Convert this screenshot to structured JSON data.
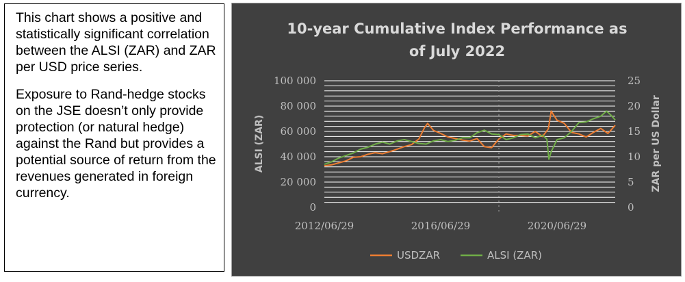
{
  "description": {
    "paragraphs": [
      "This chart shows a positive and statistically significant correlation between the ALSI (ZAR) and ZAR per USD price series.",
      "Exposure to Rand-hedge stocks on the JSE doesn’t only provide protection (or natural hedge) against the Rand but provides a potential source of return from the revenues generated in foreign currency."
    ]
  },
  "chart_data": {
    "type": "line",
    "title": "10-year Cumulative Index Performance as of July 2022",
    "title_lines": [
      "10-year Cumulative Index Performance as",
      "of July 2022"
    ],
    "ylabel": "ALSI (ZAR)",
    "y2label": "ZAR per US Dollar",
    "xlim": [
      2012.5,
      2022.5
    ],
    "ylim": [
      0,
      100000
    ],
    "y2lim": [
      0,
      25
    ],
    "y_ticks": [
      0,
      20000,
      40000,
      60000,
      80000,
      100000
    ],
    "y_tick_labels": [
      "0",
      "20 000",
      "40 000",
      "60 000",
      "80 000",
      "100 000"
    ],
    "y2_ticks": [
      0,
      5,
      10,
      15,
      20,
      25
    ],
    "y2_tick_labels": [
      "0",
      "5",
      "10",
      "15",
      "20",
      "25"
    ],
    "x_ticks": [
      2012.5,
      2016.5,
      2020.5
    ],
    "x_tick_labels": [
      "2012/06/29",
      "2016/06/29",
      "2020/06/29"
    ],
    "grid": true,
    "legend": "bottom",
    "colors": {
      "background": "#404040",
      "usdzar": "#ed7d31",
      "alsi": "#70ad47",
      "grid": "#ffffff",
      "text": "#bfbfbf"
    },
    "series": [
      {
        "name": "USDZAR",
        "axis": "y2",
        "x": [
          2012.5,
          2012.75,
          2013.0,
          2013.25,
          2013.5,
          2013.75,
          2014.0,
          2014.25,
          2014.5,
          2014.75,
          2015.0,
          2015.25,
          2015.5,
          2015.75,
          2015.95,
          2016.05,
          2016.25,
          2016.5,
          2016.75,
          2017.0,
          2017.25,
          2017.5,
          2017.75,
          2018.0,
          2018.25,
          2018.5,
          2018.75,
          2019.0,
          2019.25,
          2019.5,
          2019.75,
          2020.0,
          2020.2,
          2020.3,
          2020.5,
          2020.75,
          2021.0,
          2021.25,
          2021.5,
          2021.75,
          2022.0,
          2022.25,
          2022.5
        ],
        "values": [
          8.2,
          8.4,
          8.8,
          9.2,
          9.9,
          10.0,
          10.5,
          10.8,
          10.6,
          11.0,
          11.5,
          12.0,
          12.4,
          13.5,
          15.8,
          16.6,
          15.2,
          14.6,
          13.9,
          13.6,
          13.3,
          13.1,
          13.6,
          12.0,
          11.8,
          13.5,
          14.5,
          14.2,
          14.2,
          14.1,
          15.0,
          14.0,
          15.5,
          19.0,
          17.2,
          16.6,
          14.8,
          14.5,
          13.9,
          14.8,
          15.6,
          14.6,
          16.2
        ]
      },
      {
        "name": "ALSI (ZAR)",
        "axis": "y1",
        "x": [
          2012.5,
          2012.75,
          2013.0,
          2013.25,
          2013.5,
          2013.75,
          2014.0,
          2014.25,
          2014.5,
          2014.75,
          2015.0,
          2015.25,
          2015.5,
          2015.75,
          2016.0,
          2016.25,
          2016.5,
          2016.75,
          2017.0,
          2017.25,
          2017.5,
          2017.75,
          2018.0,
          2018.25,
          2018.5,
          2018.75,
          2019.0,
          2019.25,
          2019.5,
          2019.75,
          2020.0,
          2020.15,
          2020.22,
          2020.3,
          2020.5,
          2020.75,
          2021.0,
          2021.25,
          2021.5,
          2021.75,
          2022.0,
          2022.2,
          2022.35,
          2022.5
        ],
        "values": [
          34000,
          36000,
          39000,
          41000,
          43000,
          46000,
          47500,
          50000,
          51500,
          50000,
          52500,
          53500,
          52000,
          50500,
          50000,
          52500,
          53500,
          52000,
          53000,
          55000,
          55000,
          59000,
          61000,
          58000,
          57500,
          53500,
          55000,
          57500,
          58000,
          55000,
          57000,
          54000,
          38000,
          44000,
          53500,
          55000,
          60000,
          67000,
          67500,
          70000,
          72000,
          76000,
          73000,
          69000
        ]
      }
    ]
  }
}
